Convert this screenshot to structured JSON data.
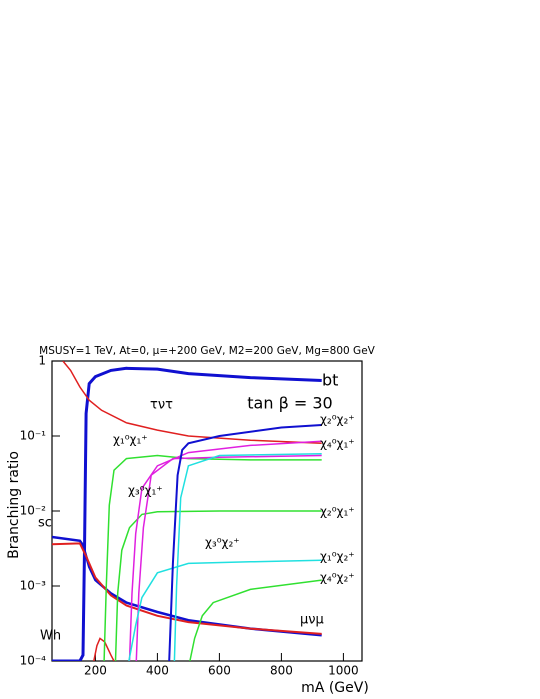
{
  "chart_data": {
    "type": "line",
    "title": "MSUSY=1 TeV, At=0, μ=+200 GeV, M2=200 GeV, Mg=800 GeV",
    "x_label": "mA (GeV)",
    "y_label": "Branching ratio",
    "annotations": [
      "tan β = 30"
    ],
    "log_y": true,
    "xlim": [
      60,
      1060
    ],
    "xticks": [
      200,
      400,
      600,
      800,
      1000
    ],
    "ylim": [
      0.0001,
      1
    ],
    "yticks": [
      {
        "value": 0.0001,
        "label": "10⁻⁴"
      },
      {
        "value": 0.001,
        "label": "10⁻³"
      },
      {
        "value": 0.01,
        "label": "10⁻²"
      },
      {
        "value": 0.1,
        "label": "10⁻¹"
      },
      1
    ],
    "series": [
      {
        "name": "bt",
        "color": "#1010d0",
        "width": 3,
        "x": [
          60,
          150,
          160,
          165,
          170,
          180,
          200,
          250,
          300,
          400,
          500,
          700,
          930
        ],
        "values": [
          0.0001,
          0.0001,
          0.00012,
          0.003,
          0.2,
          0.5,
          0.62,
          0.75,
          0.8,
          0.78,
          0.68,
          0.6,
          0.55
        ]
      },
      {
        "name": "τντ",
        "color": "#e02020",
        "width": 1.5,
        "x": [
          95,
          120,
          150,
          180,
          220,
          300,
          400,
          500,
          700,
          930
        ],
        "values": [
          1,
          0.75,
          0.45,
          0.3,
          0.22,
          0.15,
          0.12,
          0.1,
          0.088,
          0.08
        ]
      },
      {
        "name": "sc",
        "color": "#1010d0",
        "width": 2.5,
        "x": [
          60,
          150,
          160,
          180,
          200,
          250,
          300,
          400,
          500,
          700,
          930
        ],
        "values": [
          0.0045,
          0.004,
          0.0035,
          0.0018,
          0.0012,
          0.0008,
          0.0006,
          0.00045,
          0.00035,
          0.00027,
          0.00022
        ]
      },
      {
        "name": "μνμ",
        "color": "#e02020",
        "width": 2,
        "x": [
          60,
          150,
          170,
          200,
          250,
          300,
          400,
          500,
          700,
          930
        ],
        "values": [
          0.0036,
          0.0037,
          0.0025,
          0.0013,
          0.00075,
          0.00055,
          0.0004,
          0.00033,
          0.00027,
          0.00023
        ]
      },
      {
        "name": "Wh",
        "color": "#e02020",
        "width": 1.5,
        "x": [
          195,
          205,
          215,
          230,
          250,
          260
        ],
        "values": [
          0.0001,
          0.00016,
          0.0002,
          0.00018,
          0.00012,
          0.0001
        ]
      },
      {
        "name": "χ₁⁰χ₁⁺",
        "color": "#30e030",
        "width": 1.5,
        "x": [
          228,
          235,
          245,
          260,
          300,
          400,
          500,
          700,
          930
        ],
        "values": [
          0.0001,
          0.001,
          0.012,
          0.035,
          0.05,
          0.055,
          0.05,
          0.048,
          0.048
        ]
      },
      {
        "name": "χ₂⁰χ₁⁺",
        "color": "#30e030",
        "width": 1.5,
        "x": [
          265,
          272,
          285,
          310,
          350,
          400,
          600,
          930
        ],
        "values": [
          0.0001,
          0.0008,
          0.003,
          0.006,
          0.009,
          0.0098,
          0.01,
          0.01
        ]
      },
      {
        "name": "χ₄⁰χ₁⁺",
        "color": "#e020e0",
        "width": 1.5,
        "x": [
          310,
          318,
          330,
          350,
          400,
          500,
          700,
          930
        ],
        "values": [
          0.0001,
          0.0008,
          0.005,
          0.02,
          0.04,
          0.06,
          0.075,
          0.085
        ]
      },
      {
        "name": "χ₃⁰χ₁⁺",
        "color": "#e020e0",
        "width": 1.5,
        "x": [
          332,
          340,
          355,
          380,
          450,
          600,
          930
        ],
        "values": [
          0.0001,
          0.0008,
          0.006,
          0.03,
          0.05,
          0.052,
          0.055
        ]
      },
      {
        "name": "χ₁⁰χ₂⁺",
        "color": "#20e0e0",
        "width": 1.5,
        "x": [
          308,
          330,
          350,
          400,
          500,
          700,
          930
        ],
        "values": [
          0.0001,
          0.0003,
          0.0007,
          0.0015,
          0.002,
          0.0021,
          0.0022
        ]
      },
      {
        "name": "χ₃⁰χ₂⁺",
        "color": "#20e0e0",
        "width": 1.5,
        "x": [
          455,
          462,
          475,
          500,
          600,
          930
        ],
        "values": [
          0.0001,
          0.001,
          0.015,
          0.04,
          0.055,
          0.058
        ]
      },
      {
        "name": "χ₂⁰χ₂⁺",
        "color": "#1010d0",
        "width": 2,
        "x": [
          438,
          450,
          465,
          480,
          500,
          600,
          800,
          930
        ],
        "values": [
          0.0001,
          0.002,
          0.03,
          0.065,
          0.08,
          0.1,
          0.13,
          0.14
        ]
      },
      {
        "name": "χ₄⁰χ₂⁺",
        "color": "#30e030",
        "width": 1.5,
        "x": [
          505,
          520,
          545,
          580,
          700,
          930
        ],
        "values": [
          0.0001,
          0.0002,
          0.0004,
          0.0006,
          0.0009,
          0.0012
        ]
      }
    ]
  }
}
